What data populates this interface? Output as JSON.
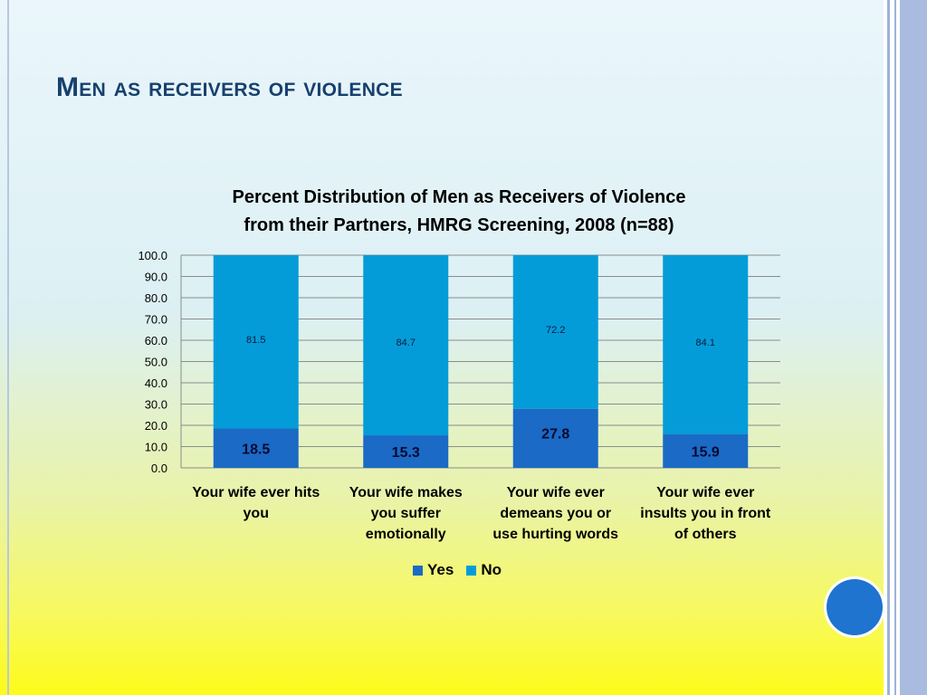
{
  "slide": {
    "title": "Men as receivers of violence"
  },
  "colors": {
    "yes": "#1a6ac6",
    "no": "#049cd8",
    "title": "#17406d",
    "accent_dot": "#1f74cf"
  },
  "icons": {
    "decoration": "filled-circle"
  },
  "chart_data": {
    "type": "bar",
    "stacked": true,
    "title_lines": [
      "Percent Distribution of Men as Receivers of Violence",
      "from their Partners, HMRG Screening, 2008 (n=88)"
    ],
    "categories": [
      [
        "Your wife ever hits",
        "you"
      ],
      [
        "Your wife makes",
        "you suffer",
        "emotionally"
      ],
      [
        "Your wife ever",
        "demeans you or",
        "use hurting words"
      ],
      [
        "Your wife ever",
        "insults you in front",
        "of others"
      ]
    ],
    "series": [
      {
        "name": "Yes",
        "values": [
          18.5,
          15.3,
          27.8,
          15.9
        ],
        "labels": [
          "18.5",
          "15.3",
          "27.8",
          "15.9"
        ]
      },
      {
        "name": "No",
        "values": [
          81.5,
          84.7,
          72.2,
          84.1
        ],
        "labels": [
          "81.5",
          "84.7",
          "72.2",
          "84.1"
        ]
      }
    ],
    "ylim": [
      0,
      100
    ],
    "yticks": [
      "0.0",
      "10.0",
      "20.0",
      "30.0",
      "40.0",
      "50.0",
      "60.0",
      "70.0",
      "80.0",
      "90.0",
      "100.0"
    ],
    "ytick_values": [
      0,
      10,
      20,
      30,
      40,
      50,
      60,
      70,
      80,
      90,
      100
    ],
    "grid": true,
    "legend_position": "bottom"
  }
}
